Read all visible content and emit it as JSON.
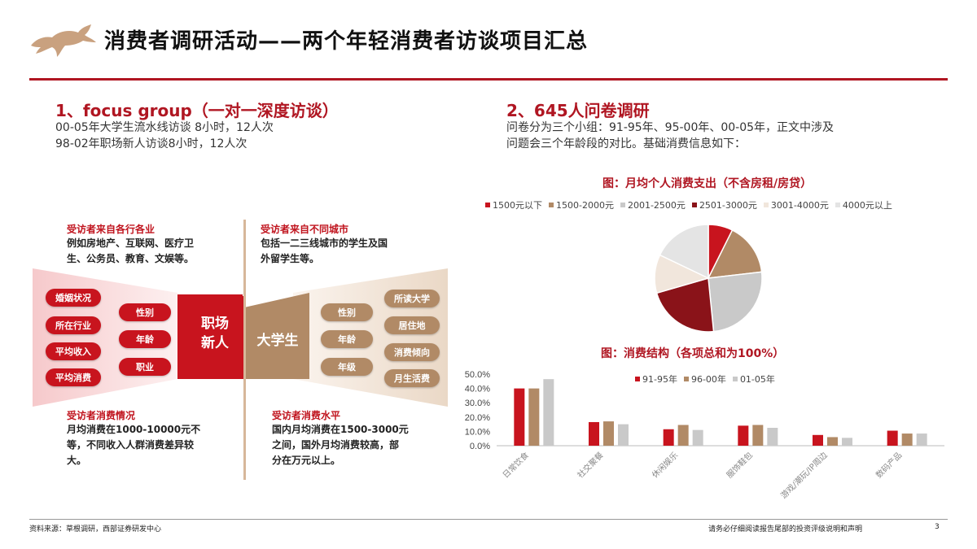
{
  "header": {
    "title": "消费者调研活动——两个年轻消费者访谈项目汇总"
  },
  "left": {
    "heading": "1、focus group（一对一深度访谈）",
    "lines": [
      "00-05年大学生流水线访谈 8小时，12人次",
      "98-02年职场新人访谈8小时，12人次"
    ],
    "top_left": {
      "label": "受访者来自各行各业",
      "text_lines": [
        "例如房地产、互联网、医疗卫",
        "生、公务员、教育、文娱等。"
      ]
    },
    "top_right": {
      "label": "受访者来自不同城市",
      "text_lines": [
        "包括一二三线城市的学生及国",
        "外留学生等。"
      ]
    },
    "left_center": "职场\n新人",
    "left_center_lines": [
      "职场",
      "新人"
    ],
    "right_center": "大学生",
    "left_outer_pills": [
      "婚姻状况",
      "所在行业",
      "平均收入",
      "平均消费"
    ],
    "left_inner_pills": [
      "性别",
      "年龄",
      "职业"
    ],
    "right_inner_pills": [
      "性别",
      "年龄",
      "年级"
    ],
    "right_outer_pills": [
      "所读大学",
      "居住地",
      "消费倾向",
      "月生活费"
    ],
    "bottom_left": {
      "label": "受访者消费情况",
      "text_lines": [
        "月均消费在1000-10000元不",
        "等，不同收入人群消费差异较",
        "大。"
      ]
    },
    "bottom_right": {
      "label": "受访者消费水平",
      "text_lines": [
        "国内月均消费在1500-3000元",
        "之间，国外月均消费较高，部",
        "分在万元以上。"
      ]
    }
  },
  "right": {
    "heading": "2、645人问卷调研",
    "lines": [
      "问卷分为三个小组：91-95年、95-00年、00-05年，正文中涉及",
      "问题会三个年龄段的对比。基础消费信息如下："
    ]
  },
  "colors": {
    "brand_red": "#b01622",
    "pill_red": "#c8141e",
    "tan": "#b18a66",
    "dark_red": "#8a1319",
    "light_tan": "#f1e6dc",
    "light_gray": "#e4e4e4",
    "gray": "#c9c9c9"
  },
  "chart_data": [
    {
      "type": "pie",
      "title": "图：月均个人消费支出（不含房租/房贷）",
      "labels": [
        "1500元以下",
        "1500-2000元",
        "2001-2500元",
        "2501-3000元",
        "3001-4000元",
        "4000元以上"
      ],
      "values": [
        7,
        15,
        24,
        21,
        11,
        17
      ],
      "colors": [
        "#c8141e",
        "#b18a66",
        "#c9c9c9",
        "#8a1319",
        "#f1e6dc",
        "#e4e4e4"
      ],
      "legend": "top"
    },
    {
      "type": "bar",
      "title": "图：消费结构（各项总和为100%）",
      "categories": [
        "日常饮食",
        "社交聚餐",
        "休闲娱乐",
        "服饰鞋包",
        "游戏/潮玩/IP周边",
        "数码产品"
      ],
      "series": [
        {
          "name": "91-95年",
          "values": [
            40.0,
            16.5,
            11.5,
            14.0,
            7.5,
            10.5
          ],
          "color": "#c8141e"
        },
        {
          "name": "96-00年",
          "values": [
            40.0,
            17.0,
            14.5,
            14.5,
            6.0,
            8.5
          ],
          "color": "#b18a66"
        },
        {
          "name": "01-05年",
          "values": [
            46.5,
            15.0,
            11.0,
            12.5,
            5.5,
            8.5
          ],
          "color": "#c9c9c9"
        }
      ],
      "yticks": [
        "0.0%",
        "10.0%",
        "20.0%",
        "30.0%",
        "40.0%",
        "50.0%"
      ],
      "ylim": [
        0,
        50
      ],
      "legend": "top"
    }
  ],
  "footer": {
    "source": "资料来源：草根调研，西部证券研发中心",
    "disclaimer": "请务必仔细阅读报告尾部的投资评级说明和声明",
    "page": "3"
  }
}
